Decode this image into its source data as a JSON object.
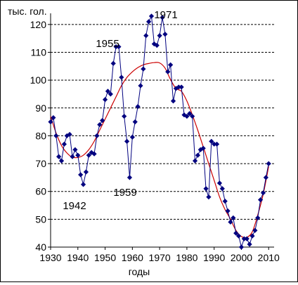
{
  "chart_data": {
    "type": "line",
    "ylabel": "тыс. гол.",
    "xlabel": "годы",
    "xlim": [
      1930,
      2012
    ],
    "ylim": [
      40,
      124
    ],
    "x_ticks": [
      1930,
      1940,
      1950,
      1960,
      1970,
      1980,
      1990,
      2000,
      2010
    ],
    "y_ticks": [
      40,
      50,
      60,
      70,
      80,
      90,
      100,
      110,
      120
    ],
    "grid": "horizontal dashed",
    "annotations": [
      {
        "text": "1971",
        "x": 1971
      },
      {
        "text": "1955",
        "x": 1955
      },
      {
        "text": "1959",
        "x": 1959
      },
      {
        "text": "1942",
        "x": 1942
      }
    ],
    "colors": {
      "series": "#00007f",
      "trend": "#cc0000",
      "grid": "#000000"
    },
    "series": [
      {
        "marker": "diamond",
        "x": [
          1930,
          1931,
          1932,
          1933,
          1934,
          1935,
          1936,
          1937,
          1938,
          1939,
          1940,
          1941,
          1942,
          1943,
          1944,
          1945,
          1946,
          1947,
          1948,
          1949,
          1950,
          1951,
          1952,
          1953,
          1954,
          1955,
          1956,
          1957,
          1958,
          1959,
          1960,
          1961,
          1962,
          1963,
          1964,
          1965,
          1966,
          1967,
          1968,
          1969,
          1970,
          1971,
          1972,
          1973,
          1974,
          1975,
          1976,
          1977,
          1978,
          1979,
          1980,
          1981,
          1982,
          1983,
          1984,
          1985,
          1986,
          1987,
          1988,
          1989,
          1990,
          1991,
          1992,
          1993,
          1994,
          1995,
          1996,
          1997,
          1998,
          1999,
          2000,
          2001,
          2002,
          2003,
          2004,
          2005,
          2006,
          2007,
          2008,
          2009,
          2010
        ],
        "y": [
          85,
          86.5,
          80,
          72.5,
          71,
          77,
          80,
          80.5,
          72.5,
          75,
          73,
          66,
          62.5,
          67,
          73,
          74,
          73.5,
          80,
          84,
          85.5,
          93,
          96,
          95,
          106,
          112,
          112,
          101,
          87,
          78,
          65,
          79.5,
          85,
          90.5,
          98,
          104,
          116,
          121,
          123,
          113,
          112.5,
          116,
          122.5,
          116.5,
          103,
          105.5,
          92.5,
          97,
          97.5,
          97.5,
          87.5,
          87,
          88,
          87,
          71,
          73,
          75,
          75.5,
          61,
          58,
          78,
          77,
          77,
          63,
          61,
          56.5,
          53,
          49,
          50.5,
          45,
          44,
          40,
          43,
          43,
          41,
          44,
          46,
          50.5,
          57,
          59.5,
          65,
          70
        ]
      }
    ],
    "trend": {
      "type": "polynomial",
      "x": [
        1930,
        1932,
        1934,
        1936,
        1938,
        1940,
        1942,
        1944,
        1946,
        1948,
        1950,
        1952,
        1954,
        1956,
        1958,
        1960,
        1962,
        1964,
        1966,
        1968,
        1970,
        1972,
        1974,
        1976,
        1978,
        1980,
        1982,
        1984,
        1986,
        1988,
        1990,
        1992,
        1994,
        1996,
        1998,
        2000,
        2002,
        2004,
        2006,
        2008,
        2010
      ],
      "y": [
        87,
        81,
        76.5,
        73.8,
        72.3,
        72.2,
        73,
        75,
        78,
        82,
        86,
        90,
        94,
        98,
        101,
        103,
        104.5,
        105.5,
        106,
        106.3,
        106.2,
        104.3,
        100.2,
        97,
        96,
        92.5,
        87.5,
        82,
        76,
        70,
        64,
        58,
        53.5,
        50,
        46,
        43.8,
        43.5,
        45.5,
        51.5,
        59,
        69
      ]
    }
  }
}
